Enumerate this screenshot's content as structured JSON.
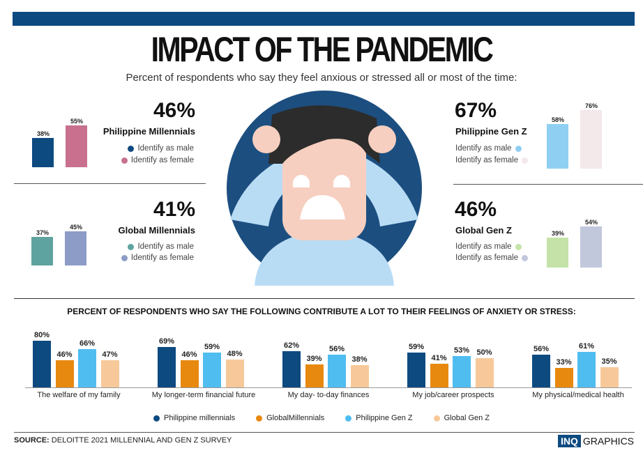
{
  "header": {
    "title": "IMPACT OF THE PANDEMIC",
    "subtitle": "Percent of respondents  who say they feel anxious or stressed all or most of the time:"
  },
  "panels": [
    {
      "id": "ph-mill",
      "overall": "46%",
      "name": "Philippine Millennials",
      "male_label": "Identify as male",
      "female_label": "Identify as female",
      "male": 38,
      "female": 55,
      "male_text": "38%",
      "female_text": "55%",
      "male_color": "#0d4a80",
      "female_color": "#c8708e"
    },
    {
      "id": "gl-mill",
      "overall": "41%",
      "name": "Global Millennials",
      "male_label": "Identify as male",
      "female_label": "Identify as female",
      "male": 37,
      "female": 45,
      "male_text": "37%",
      "female_text": "45%",
      "male_color": "#5fa3a0",
      "female_color": "#8d9cc6"
    },
    {
      "id": "ph-genz",
      "overall": "67%",
      "name": "Philippine Gen Z",
      "male_label": "Identify as male",
      "female_label": "Identify as female",
      "male": 58,
      "female": 76,
      "male_text": "58%",
      "female_text": "76%",
      "male_color": "#8fd0f2",
      "female_color": "#f3e8ea"
    },
    {
      "id": "gl-genz",
      "overall": "46%",
      "name": "Global Gen Z",
      "male_label": "Identify as male",
      "female_label": "Identify as female",
      "male": 39,
      "female": 54,
      "male_text": "39%",
      "female_text": "54%",
      "male_color": "#c5e3a8",
      "female_color": "#c2c8dc"
    }
  ],
  "chart_data": {
    "type": "bar",
    "title": "PERCENT OF RESPONDENTS  WHO SAY THE FOLLOWING CONTRIBUTE A LOT TO THEIR FEELINGS OF ANXIETY OR STRESS:",
    "categories": [
      "The welfare of my family",
      "My longer-term financial future",
      "My day- to-day finances",
      "My job/career prospects",
      "My physical/medical health"
    ],
    "series": [
      {
        "name": "Philippine millennials",
        "color": "#0d4a80",
        "values": [
          80,
          69,
          62,
          59,
          56
        ],
        "labels": [
          "80%",
          "69%",
          "62%",
          "59%",
          "56%"
        ]
      },
      {
        "name": "GlobalMillennials",
        "color": "#e8890f",
        "values": [
          46,
          46,
          39,
          41,
          33
        ],
        "labels": [
          "46%",
          "46%",
          "39%",
          "41%",
          "33%"
        ]
      },
      {
        "name": "Philippine Gen Z",
        "color": "#4fbdf0",
        "values": [
          66,
          59,
          56,
          53,
          61
        ],
        "labels": [
          "66%",
          "59%",
          "56%",
          "53%",
          "61%"
        ]
      },
      {
        "name": "Global Gen Z",
        "color": "#f7c99a",
        "values": [
          47,
          48,
          38,
          50,
          35
        ],
        "labels": [
          "47%",
          "48%",
          "38%",
          "50%",
          "35%"
        ]
      }
    ],
    "ylim": [
      0,
      100
    ],
    "legend": "bottom"
  },
  "footer": {
    "source_label": "SOURCE:",
    "source_text": " DELOITTE 2021 MILLENNIAL AND GEN Z SURVEY",
    "logo_inq": "INQ",
    "logo_graphics": "GRAPHICS"
  }
}
